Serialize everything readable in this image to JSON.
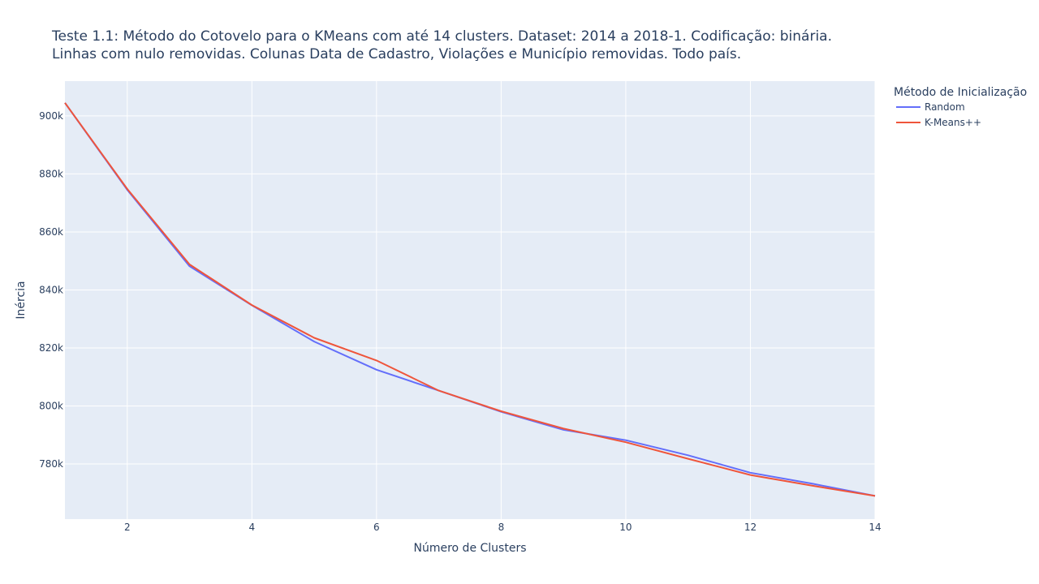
{
  "chart_data": {
    "type": "line",
    "title_lines": [
      "Teste 1.1: Método do Cotovelo para o KMeans com até 14 clusters. Dataset: 2014 a 2018-1. Codificação: binária.",
      "Linhas com nulo removidas. Colunas Data de Cadastro, Violações e Município removidas. Todo país."
    ],
    "xlabel": "Número de Clusters",
    "ylabel": "Inércia",
    "xlim": [
      1,
      14
    ],
    "ylim": [
      761000,
      912000
    ],
    "x_ticks": [
      2,
      4,
      6,
      8,
      10,
      12,
      14
    ],
    "x_tick_labels": [
      "2",
      "4",
      "6",
      "8",
      "10",
      "12",
      "14"
    ],
    "y_ticks": [
      780000,
      800000,
      820000,
      840000,
      860000,
      880000,
      900000
    ],
    "y_tick_labels": [
      "780k",
      "800k",
      "820k",
      "840k",
      "860k",
      "880k",
      "900k"
    ],
    "grid": true,
    "legend_title": "Método de Inicialização",
    "legend_position": "top-right",
    "x": [
      1,
      2,
      3,
      4,
      5,
      6,
      7,
      8,
      9,
      10,
      11,
      12,
      13,
      14
    ],
    "series": [
      {
        "name": "Random",
        "color": "#636efa",
        "values": [
          904500,
          874500,
          848200,
          834700,
          822200,
          812500,
          805300,
          798000,
          791800,
          788200,
          783000,
          777000,
          773200,
          769000
        ]
      },
      {
        "name": "K-Means++",
        "color": "#ef553b",
        "values": [
          904500,
          874800,
          848800,
          834800,
          823500,
          815700,
          805300,
          798200,
          792200,
          787500,
          781800,
          776200,
          772500,
          769000
        ]
      }
    ],
    "plot_background": "#e5ecf6",
    "grid_color": "#ffffff"
  }
}
